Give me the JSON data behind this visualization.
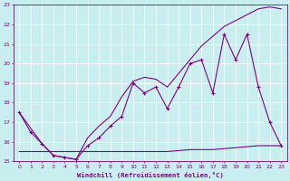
{
  "xlabel": "Windchill (Refroidissement éolien,°C)",
  "bg_color": "#c8eef0",
  "grid_color": "#b0d8dc",
  "line_color": "#800080",
  "xlim": [
    -0.5,
    23.5
  ],
  "ylim": [
    15,
    23
  ],
  "xticks": [
    0,
    1,
    2,
    3,
    4,
    5,
    6,
    7,
    8,
    9,
    10,
    11,
    12,
    13,
    14,
    15,
    16,
    17,
    18,
    19,
    20,
    21,
    22,
    23
  ],
  "yticks": [
    15,
    16,
    17,
    18,
    19,
    20,
    21,
    22,
    23
  ],
  "line1_x": [
    0,
    1,
    2,
    3,
    4,
    5,
    6,
    7,
    8,
    9,
    10,
    11,
    12,
    13,
    14,
    15,
    16,
    17,
    18,
    19,
    20,
    21,
    22,
    23
  ],
  "line1_y": [
    17.5,
    16.5,
    15.9,
    15.3,
    15.2,
    15.1,
    15.8,
    16.2,
    16.8,
    17.3,
    19.0,
    18.5,
    18.8,
    17.7,
    18.8,
    20.0,
    20.2,
    18.5,
    21.5,
    20.2,
    21.5,
    18.8,
    17.0,
    15.8
  ],
  "line2_x": [
    0,
    2,
    3,
    4,
    5,
    6,
    7,
    8,
    9,
    10,
    11,
    12,
    13,
    14,
    15,
    16,
    17,
    18,
    19,
    20,
    21,
    22,
    23
  ],
  "line2_y": [
    17.5,
    15.9,
    15.3,
    15.2,
    15.1,
    16.2,
    16.8,
    17.3,
    18.3,
    19.1,
    19.3,
    19.2,
    18.8,
    19.5,
    20.2,
    20.9,
    21.4,
    21.9,
    22.2,
    22.5,
    22.8,
    22.9,
    22.8
  ],
  "line3_x": [
    0,
    1,
    2,
    3,
    4,
    5,
    6,
    7,
    8,
    9,
    10,
    11,
    12,
    13,
    14,
    15,
    16,
    17,
    18,
    19,
    20,
    21,
    22,
    23
  ],
  "line3_y": [
    15.5,
    15.5,
    15.5,
    15.5,
    15.5,
    15.5,
    15.5,
    15.5,
    15.5,
    15.5,
    15.5,
    15.5,
    15.5,
    15.5,
    15.55,
    15.6,
    15.6,
    15.6,
    15.65,
    15.7,
    15.75,
    15.8,
    15.8,
    15.8
  ]
}
